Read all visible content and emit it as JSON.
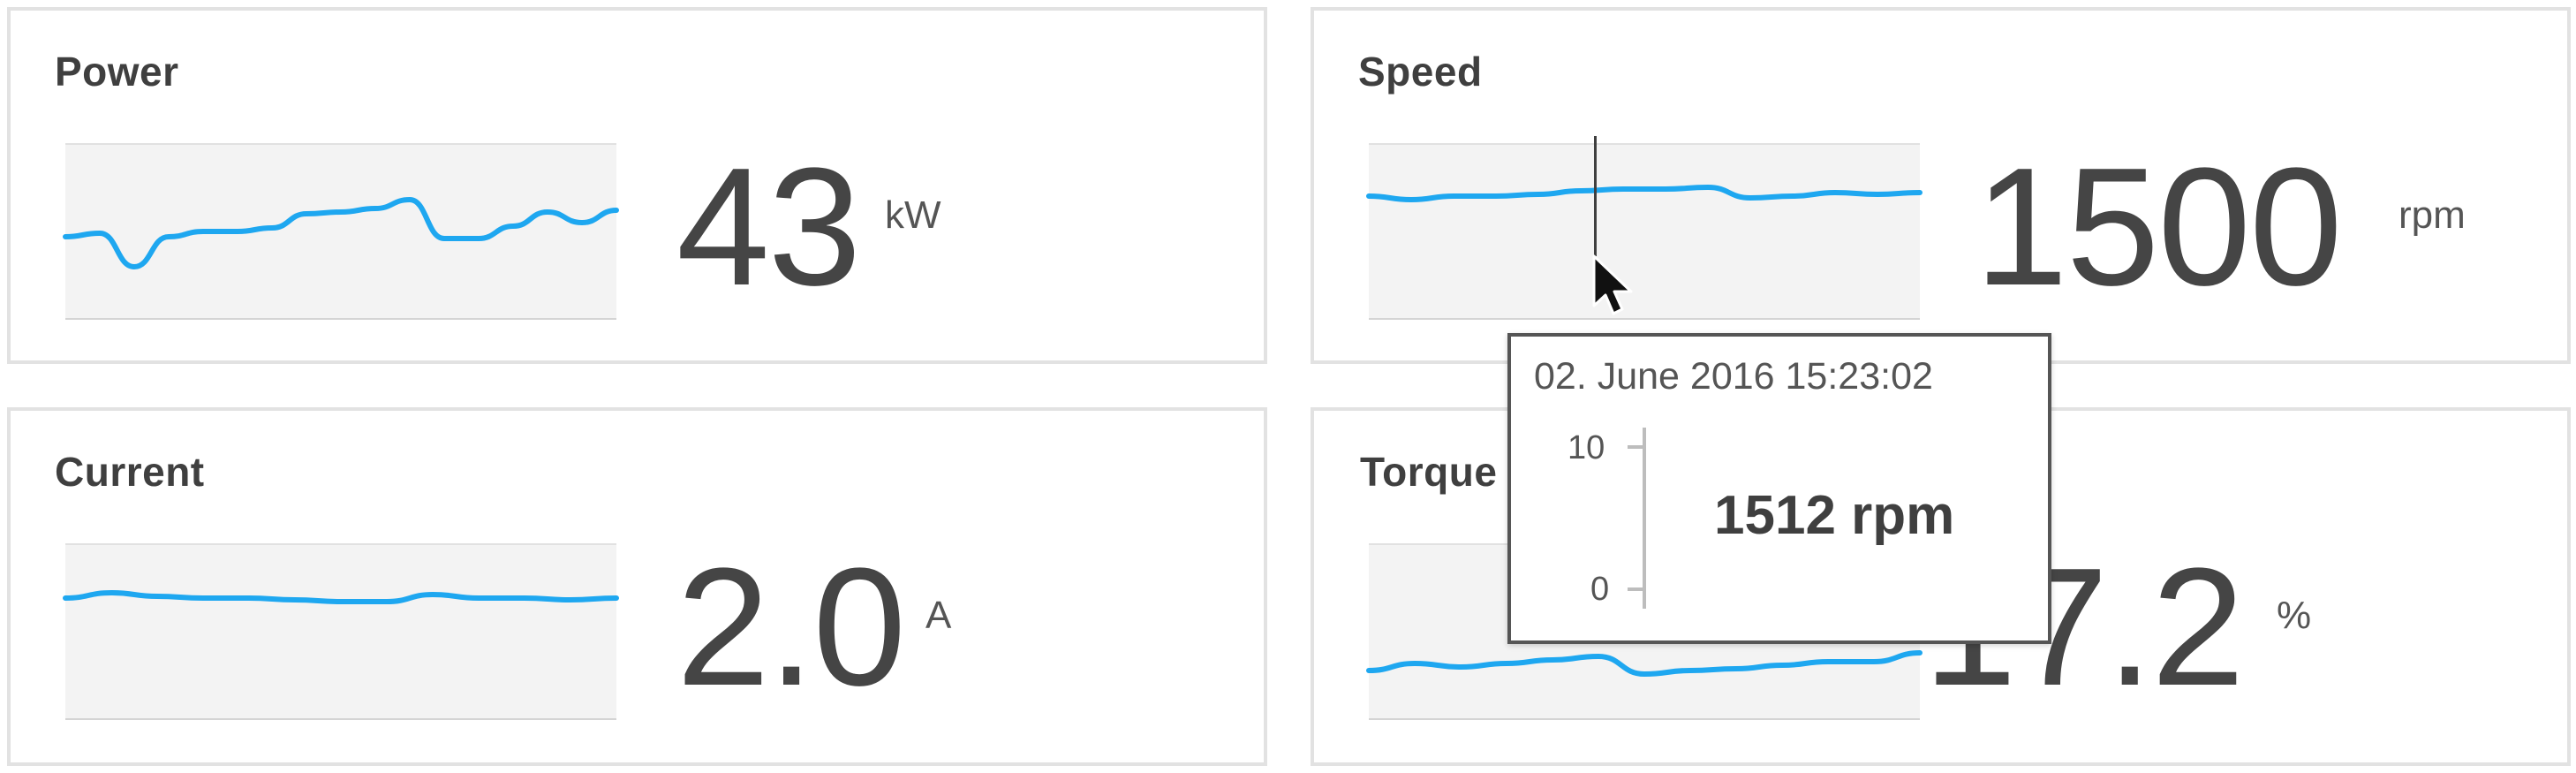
{
  "panels": {
    "power": {
      "title": "Power",
      "value": "43",
      "unit": "kW",
      "sparkline": {
        "y_values": [
          0.53,
          0.51,
          0.7,
          0.53,
          0.5,
          0.5,
          0.48,
          0.4,
          0.39,
          0.37,
          0.32,
          0.54,
          0.54,
          0.47,
          0.39,
          0.45,
          0.38
        ],
        "line_color": "#1ea7f0",
        "background": "#f3f3f3"
      }
    },
    "speed": {
      "title": "Speed",
      "value": "1500",
      "unit": "rpm",
      "sparkline": {
        "y_values": [
          0.3,
          0.32,
          0.3,
          0.3,
          0.29,
          0.27,
          0.26,
          0.26,
          0.25,
          0.31,
          0.3,
          0.28,
          0.29,
          0.28
        ],
        "line_color": "#1ea7f0",
        "background": "#f3f3f3"
      }
    },
    "current": {
      "title": "Current",
      "value": "2.0",
      "unit": "A",
      "sparkline": {
        "y_values": [
          0.31,
          0.28,
          0.3,
          0.31,
          0.31,
          0.32,
          0.33,
          0.33,
          0.29,
          0.31,
          0.31,
          0.32,
          0.31
        ],
        "line_color": "#1ea7f0",
        "background": "#f3f3f3"
      }
    },
    "torque": {
      "title": "Torque",
      "value": "17.2",
      "unit": "%",
      "sparkline": {
        "y_values": [
          0.72,
          0.68,
          0.7,
          0.68,
          0.66,
          0.64,
          0.74,
          0.72,
          0.71,
          0.69,
          0.67,
          0.67,
          0.62
        ],
        "line_color": "#1ea7f0",
        "background": "#f3f3f3"
      }
    }
  },
  "tooltip": {
    "timestamp": "02. June 2016 15:23:02",
    "value": "1512 rpm",
    "scale_max": "10",
    "scale_min": "0"
  }
}
